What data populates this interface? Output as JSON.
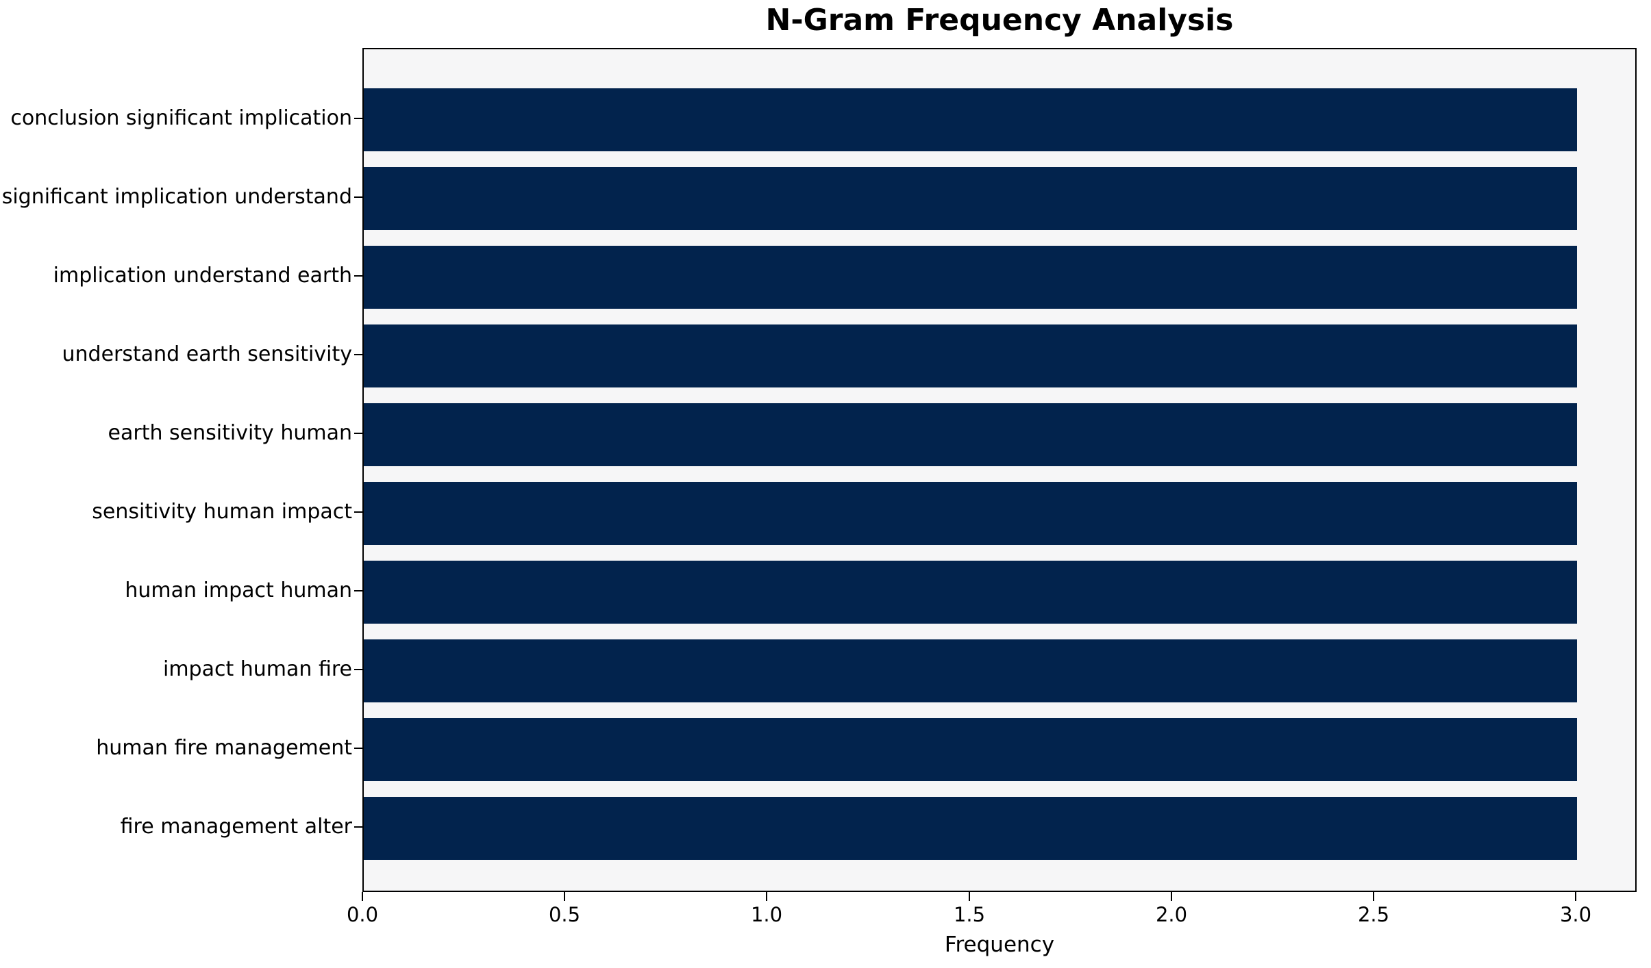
{
  "chart_data": {
    "type": "bar",
    "orientation": "horizontal",
    "title": "N-Gram Frequency Analysis",
    "xlabel": "Frequency",
    "ylabel": "",
    "categories": [
      "conclusion significant implication",
      "significant implication understand",
      "implication understand earth",
      "understand earth sensitivity",
      "earth sensitivity human",
      "sensitivity human impact",
      "human impact human",
      "impact human fire",
      "human fire management",
      "fire management alter"
    ],
    "values": [
      3,
      3,
      3,
      3,
      3,
      3,
      3,
      3,
      3,
      3
    ],
    "xlim": [
      0,
      3.15
    ],
    "xtick_values": [
      0.0,
      0.5,
      1.0,
      1.5,
      2.0,
      2.5,
      3.0
    ],
    "xtick_labels": [
      "0.0",
      "0.5",
      "1.0",
      "1.5",
      "2.0",
      "2.5",
      "3.0"
    ],
    "grid": false,
    "legend": "none",
    "colors": {
      "bar": "#02234d",
      "plot_bg": "#f6f6f7",
      "fig_bg": "#ffffff",
      "spine": "#000000",
      "text": "#000000"
    }
  }
}
